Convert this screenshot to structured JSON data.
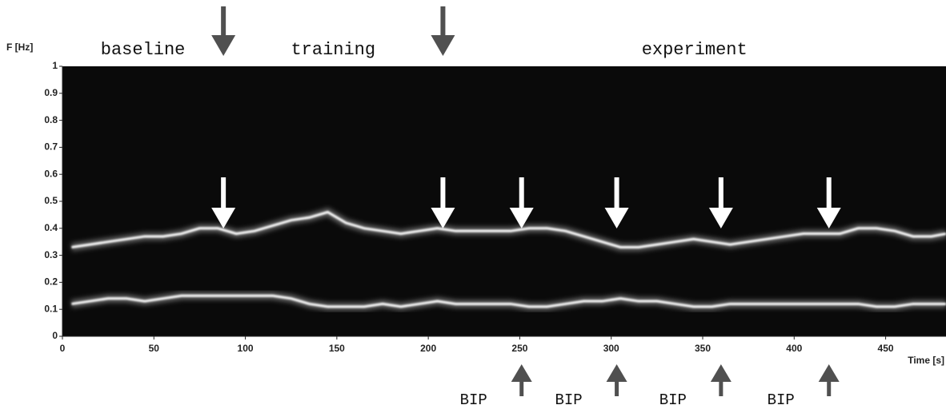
{
  "chart_data": {
    "type": "spectrogram",
    "ylabel": "F [Hz]",
    "xlabel": "Time [s]",
    "xlim": [
      0,
      483
    ],
    "xticks": [
      0,
      50,
      100,
      150,
      200,
      250,
      300,
      350,
      400,
      450
    ],
    "ylim": [
      0,
      1
    ],
    "yticks": [
      0,
      0.1,
      0.2,
      0.3,
      0.4,
      0.5,
      0.6,
      0.7,
      0.8,
      0.9,
      1
    ],
    "phases": [
      "baseline",
      "training",
      "experiment"
    ],
    "phase_boundaries": [
      88,
      208
    ],
    "events": [
      {
        "x": 251,
        "label": "BIP"
      },
      {
        "x": 303,
        "label": "BIP"
      },
      {
        "x": 360,
        "label": "BIP"
      },
      {
        "x": 419,
        "label": "BIP"
      }
    ],
    "x": [
      5,
      15,
      25,
      35,
      45,
      55,
      65,
      75,
      85,
      95,
      105,
      115,
      125,
      135,
      145,
      155,
      165,
      175,
      185,
      195,
      205,
      215,
      225,
      235,
      245,
      255,
      265,
      275,
      285,
      295,
      305,
      315,
      325,
      335,
      345,
      355,
      365,
      375,
      385,
      395,
      405,
      415,
      425,
      435,
      445,
      455,
      465,
      475,
      483
    ],
    "series": [
      {
        "color": "#ffffff",
        "values": [
          0.33,
          0.34,
          0.35,
          0.36,
          0.37,
          0.37,
          0.38,
          0.4,
          0.4,
          0.38,
          0.39,
          0.41,
          0.43,
          0.44,
          0.46,
          0.42,
          0.4,
          0.39,
          0.38,
          0.39,
          0.4,
          0.39,
          0.39,
          0.39,
          0.39,
          0.4,
          0.4,
          0.39,
          0.37,
          0.35,
          0.33,
          0.33,
          0.34,
          0.35,
          0.36,
          0.35,
          0.34,
          0.35,
          0.36,
          0.37,
          0.38,
          0.38,
          0.38,
          0.4,
          0.4,
          0.39,
          0.37,
          0.37,
          0.38
        ]
      },
      {
        "color": "#ffffff",
        "values": [
          0.12,
          0.13,
          0.14,
          0.14,
          0.13,
          0.14,
          0.15,
          0.15,
          0.15,
          0.15,
          0.15,
          0.15,
          0.14,
          0.12,
          0.11,
          0.11,
          0.11,
          0.12,
          0.11,
          0.12,
          0.13,
          0.12,
          0.12,
          0.12,
          0.12,
          0.11,
          0.11,
          0.12,
          0.13,
          0.13,
          0.14,
          0.13,
          0.13,
          0.12,
          0.11,
          0.11,
          0.12,
          0.12,
          0.12,
          0.12,
          0.12,
          0.12,
          0.12,
          0.12,
          0.11,
          0.11,
          0.12,
          0.12,
          0.12
        ]
      }
    ]
  }
}
